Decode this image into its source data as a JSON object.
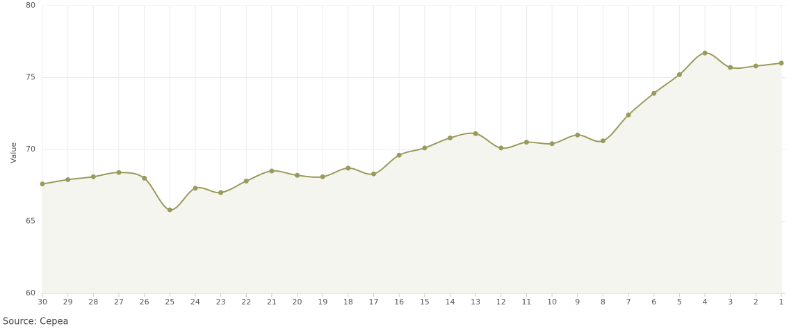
{
  "chart_data": {
    "type": "line",
    "y_label": "Value",
    "source": "Source: Cepea",
    "categories": [
      "30",
      "29",
      "28",
      "27",
      "26",
      "25",
      "24",
      "23",
      "22",
      "21",
      "20",
      "19",
      "18",
      "17",
      "16",
      "15",
      "14",
      "13",
      "12",
      "11",
      "10",
      "9",
      "8",
      "7",
      "6",
      "5",
      "4",
      "3",
      "2",
      "1"
    ],
    "values": [
      67.6,
      67.9,
      68.1,
      68.4,
      68.0,
      65.8,
      67.3,
      67.0,
      67.8,
      68.5,
      68.2,
      68.1,
      68.7,
      68.3,
      69.6,
      70.1,
      70.8,
      71.1,
      70.1,
      70.5,
      70.4,
      71.0,
      70.6,
      72.4,
      73.9,
      75.2,
      76.7,
      75.7,
      75.8,
      76.0
    ],
    "color": "#999a5b",
    "area_color": "#f5f5f0",
    "ylim": [
      60,
      80
    ],
    "yticks": [
      60,
      65,
      70,
      75,
      80
    ],
    "grid": true
  }
}
